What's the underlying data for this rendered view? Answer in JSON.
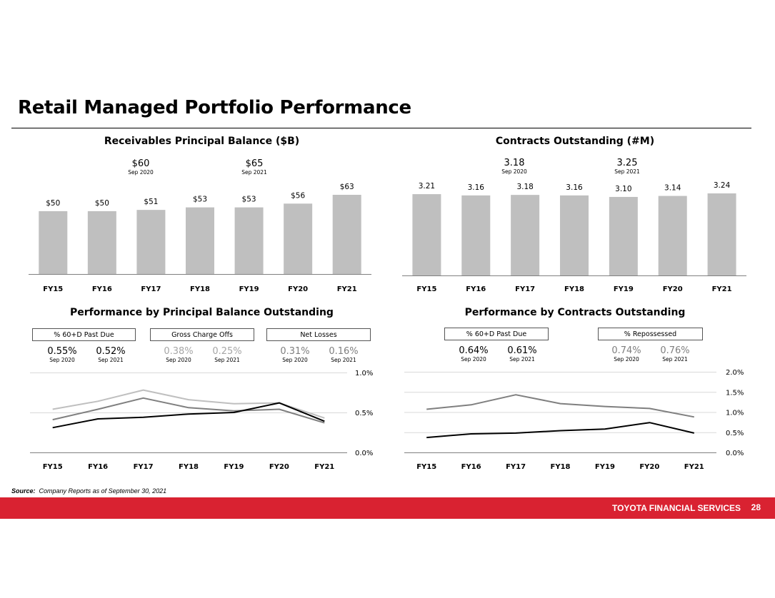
{
  "page": {
    "title": "Retail Managed Portfolio Performance",
    "source_label": "Source:",
    "source_text": "Company Reports as of September 30, 2021",
    "footer_brand": "TOYOTA FINANCIAL SERVICES",
    "page_number": "28"
  },
  "colors": {
    "bar": "#bfbfbf",
    "axis": "#808080",
    "grid": "#d9d9d9",
    "series_black": "#000000",
    "series_mid": "#7f7f7f",
    "series_light": "#bfbfbf",
    "footer_red": "#d92231"
  },
  "chart_data": [
    {
      "id": "receivables",
      "type": "bar",
      "title": "Receivables Principal Balance ($B)",
      "categories": [
        "FY15",
        "FY16",
        "FY17",
        "FY18",
        "FY19",
        "FY20",
        "FY21"
      ],
      "values": [
        50,
        50,
        51,
        53,
        53,
        56,
        63
      ],
      "data_labels": [
        "$50",
        "$50",
        "$51",
        "$53",
        "$53",
        "$56",
        "$63"
      ],
      "ylim": [
        0,
        70
      ],
      "highlights": [
        {
          "value": "$60",
          "sub": "Sep 2020"
        },
        {
          "value": "$65",
          "sub": "Sep 2021"
        }
      ]
    },
    {
      "id": "contracts",
      "type": "bar",
      "title": "Contracts Outstanding (#M)",
      "categories": [
        "FY15",
        "FY16",
        "FY17",
        "FY18",
        "FY19",
        "FY20",
        "FY21"
      ],
      "values": [
        3.21,
        3.16,
        3.18,
        3.16,
        3.1,
        3.14,
        3.24
      ],
      "data_labels": [
        "3.21",
        "3.16",
        "3.18",
        "3.16",
        "3.10",
        "3.14",
        "3.24"
      ],
      "ylim": [
        0,
        3.6
      ],
      "highlights": [
        {
          "value": "3.18",
          "sub": "Sep 2020"
        },
        {
          "value": "3.25",
          "sub": "Sep 2021"
        }
      ]
    },
    {
      "id": "perf_balance",
      "type": "line",
      "title": "Performance by  Principal Balance Outstanding",
      "categories": [
        "FY15",
        "FY16",
        "FY17",
        "FY18",
        "FY19",
        "FY20",
        "FY21"
      ],
      "ylim": [
        0,
        1.0
      ],
      "yticks": [
        0,
        0.5,
        1.0
      ],
      "ytick_labels": [
        "0.0%",
        "0.5%",
        "1.0%"
      ],
      "grid": true,
      "series": [
        {
          "name": "% 60+D Past Due",
          "color": "#000000",
          "values": [
            0.31,
            0.42,
            0.44,
            0.48,
            0.5,
            0.62,
            0.39
          ],
          "kpi": [
            {
              "value": "0.55%",
              "sub": "Sep 2020"
            },
            {
              "value": "0.52%",
              "sub": "Sep 2021"
            }
          ],
          "kpi_color": "#000000"
        },
        {
          "name": "Gross Charge Offs",
          "color": "#bfbfbf",
          "values": [
            0.54,
            0.64,
            0.78,
            0.66,
            0.61,
            0.62,
            0.43
          ],
          "kpi": [
            {
              "value": "0.38%",
              "sub": "Sep 2020"
            },
            {
              "value": "0.25%",
              "sub": "Sep 2021"
            }
          ],
          "kpi_color": "#a6a6a6"
        },
        {
          "name": "Net Losses",
          "color": "#7f7f7f",
          "values": [
            0.41,
            0.54,
            0.68,
            0.56,
            0.52,
            0.54,
            0.37
          ],
          "kpi": [
            {
              "value": "0.31%",
              "sub": "Sep 2020"
            },
            {
              "value": "0.16%",
              "sub": "Sep 2021"
            }
          ],
          "kpi_color": "#7f7f7f"
        }
      ]
    },
    {
      "id": "perf_contracts",
      "type": "line",
      "title": "Performance by  Contracts Outstanding",
      "categories": [
        "FY15",
        "FY16",
        "FY17",
        "FY18",
        "FY19",
        "FY20",
        "FY21"
      ],
      "ylim": [
        0,
        2.0
      ],
      "yticks": [
        0,
        0.5,
        1.0,
        1.5,
        2.0
      ],
      "ytick_labels": [
        "0.0%",
        "0.5%",
        "1.0%",
        "1.5%",
        "2.0%"
      ],
      "grid": true,
      "series": [
        {
          "name": "% 60+D Past Due",
          "color": "#000000",
          "values": [
            0.37,
            0.46,
            0.48,
            0.54,
            0.58,
            0.74,
            0.48
          ],
          "kpi": [
            {
              "value": "0.64%",
              "sub": "Sep 2020"
            },
            {
              "value": "0.61%",
              "sub": "Sep 2021"
            }
          ],
          "kpi_color": "#000000"
        },
        {
          "name": "% Repossessed",
          "color": "#7f7f7f",
          "values": [
            1.07,
            1.18,
            1.43,
            1.21,
            1.14,
            1.09,
            0.88
          ],
          "kpi": [
            {
              "value": "0.74%",
              "sub": "Sep 2020"
            },
            {
              "value": "0.76%",
              "sub": "Sep 2021"
            }
          ],
          "kpi_color": "#7f7f7f"
        }
      ]
    }
  ]
}
